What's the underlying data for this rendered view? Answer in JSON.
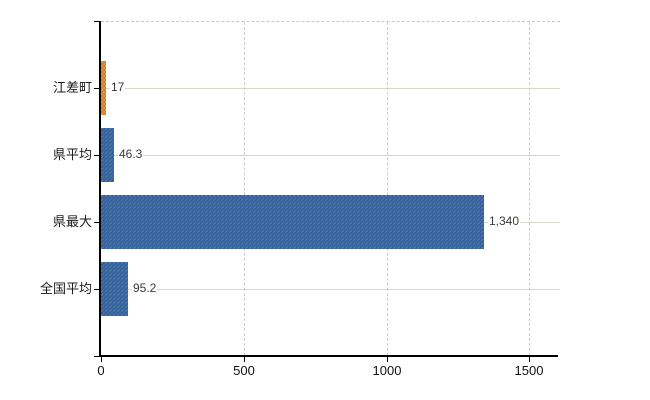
{
  "chart_data": {
    "type": "bar",
    "orientation": "horizontal",
    "title": "",
    "categories": [
      "江差町",
      "県平均",
      "県最大",
      "全国平均"
    ],
    "values": [
      17,
      46.3,
      1340,
      95.2
    ],
    "value_labels": [
      "17",
      "46.3",
      "1,340",
      "95.2"
    ],
    "bar_colors": [
      "#ec9031",
      "#3c6ca8",
      "#3c6ca8",
      "#3c6ca8"
    ],
    "xlabel": "",
    "ylabel": "",
    "xlim": [
      0,
      1600
    ],
    "x_ticks": [
      0,
      500,
      1000,
      1500
    ],
    "x_tick_labels": [
      "0",
      "500",
      "1000",
      "1500"
    ],
    "legend": "none",
    "grid": {
      "horizontal_row_lines": "solid",
      "vertical_tick_lines": "dashed",
      "plot_top_border": "dashed"
    },
    "colors": {
      "blue_bar": "#3c6ca8",
      "orange_bar": "#ec9031",
      "horizontal_grid": "#d4d8c9",
      "vertical_grid": "#cfcad2",
      "axis": "#000000",
      "category_text": "#1a1a1a",
      "value_text": "#3a3a3a",
      "background": "#ffffff"
    }
  }
}
